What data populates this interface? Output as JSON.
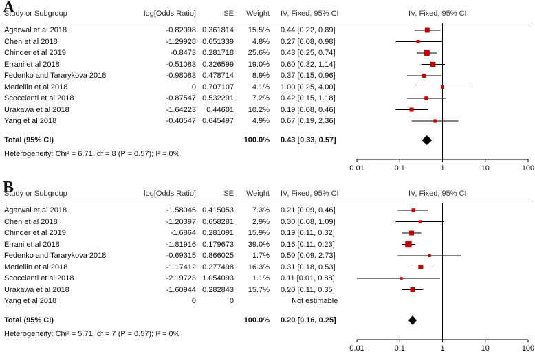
{
  "columns": {
    "study": "Study or Subgroup",
    "lor": "log[Odds Ratio]",
    "se": "SE",
    "weight": "Weight",
    "ci": "IV, Fixed, 95% CI",
    "plot": "IV, Fixed, 95% CI"
  },
  "colors": {
    "marker": "#c00000",
    "line": "#000000",
    "diamond": "#000000"
  },
  "chart_data": [
    {
      "type": "forest",
      "panel_label": "A",
      "x_scale": "log",
      "xlim": [
        0.01,
        100
      ],
      "x_ticks": [
        "0.01",
        "0.1",
        "1",
        "10",
        "100"
      ],
      "null_line": 1,
      "rows": [
        {
          "study": "Agarwal et al 2018",
          "lor": "-0.82098",
          "se": "0.361814",
          "weight": "15.5%",
          "ci": "0.44 [0.22, 0.89]",
          "or": 0.44,
          "lo": 0.22,
          "hi": 0.89,
          "w": 15.5
        },
        {
          "study": "Chen et al 2018",
          "lor": "-1.29928",
          "se": "0.651339",
          "weight": "4.8%",
          "ci": "0.27 [0.08, 0.98]",
          "or": 0.27,
          "lo": 0.08,
          "hi": 0.98,
          "w": 4.8
        },
        {
          "study": "Chinder et al 2019",
          "lor": "-0.8473",
          "se": "0.281718",
          "weight": "25.6%",
          "ci": "0.43 [0.25, 0.74]",
          "or": 0.43,
          "lo": 0.25,
          "hi": 0.74,
          "w": 25.6
        },
        {
          "study": "Errani et al 2018",
          "lor": "-0.51083",
          "se": "0.326599",
          "weight": "19.0%",
          "ci": "0.60 [0.32, 1.14]",
          "or": 0.6,
          "lo": 0.32,
          "hi": 1.14,
          "w": 19.0
        },
        {
          "study": "Fedenko and Tararykova 2018",
          "lor": "-0.98083",
          "se": "0.478714",
          "weight": "8.9%",
          "ci": "0.37 [0.15, 0.96]",
          "or": 0.37,
          "lo": 0.15,
          "hi": 0.96,
          "w": 8.9
        },
        {
          "study": "Medellin et al 2018",
          "lor": "0",
          "se": "0.707107",
          "weight": "4.1%",
          "ci": "1.00 [0.25, 4.00]",
          "or": 1.0,
          "lo": 0.25,
          "hi": 4.0,
          "w": 4.1
        },
        {
          "study": "Scoccianti et al 2018",
          "lor": "-0.87547",
          "se": "0.532291",
          "weight": "7.2%",
          "ci": "0.42 [0.15, 1.18]",
          "or": 0.42,
          "lo": 0.15,
          "hi": 1.18,
          "w": 7.2
        },
        {
          "study": "Urakawa et al 2018",
          "lor": "-1.64223",
          "se": "0.44601",
          "weight": "10.2%",
          "ci": "0.19 [0.08, 0.46]",
          "or": 0.19,
          "lo": 0.08,
          "hi": 0.46,
          "w": 10.2
        },
        {
          "study": "Yang et al  2018",
          "lor": "-0.40547",
          "se": "0.645497",
          "weight": "4.9%",
          "ci": "0.67 [0.19, 2.36]",
          "or": 0.67,
          "lo": 0.19,
          "hi": 2.36,
          "w": 4.9
        }
      ],
      "total": {
        "label": "Total (95% CI)",
        "weight": "100.0%",
        "ci": "0.43 [0.33, 0.57]",
        "or": 0.43,
        "lo": 0.33,
        "hi": 0.57
      },
      "heterogeneity": "Heterogeneity: Chi² = 6.71, df = 8 (P = 0.57); I² = 0%"
    },
    {
      "type": "forest",
      "panel_label": "B",
      "x_scale": "log",
      "xlim": [
        0.01,
        100
      ],
      "x_ticks": [
        "0.01",
        "0.1",
        "1",
        "10",
        "100"
      ],
      "null_line": 1,
      "rows": [
        {
          "study": "Agarwal et al 2018",
          "lor": "-1.58045",
          "se": "0.415053",
          "weight": "7.3%",
          "ci": "0.21 [0.09, 0.46]",
          "or": 0.21,
          "lo": 0.09,
          "hi": 0.46,
          "w": 7.3
        },
        {
          "study": "Chen et al 2018",
          "lor": "-1.20397",
          "se": "0.658281",
          "weight": "2.9%",
          "ci": "0.30 [0.08, 1.09]",
          "or": 0.3,
          "lo": 0.08,
          "hi": 1.09,
          "w": 2.9
        },
        {
          "study": "Chinder et al 2019",
          "lor": "-1.6864",
          "se": "0.281091",
          "weight": "15.9%",
          "ci": "0.19 [0.11, 0.32]",
          "or": 0.19,
          "lo": 0.11,
          "hi": 0.32,
          "w": 15.9
        },
        {
          "study": "Errani et al 2018",
          "lor": "-1.81916",
          "se": "0.179673",
          "weight": "39.0%",
          "ci": "0.16 [0.11, 0.23]",
          "or": 0.16,
          "lo": 0.11,
          "hi": 0.23,
          "w": 39.0
        },
        {
          "study": "Fedenko and Tararykova 2018",
          "lor": "-0.69315",
          "se": "0.866025",
          "weight": "1.7%",
          "ci": "0.50 [0.09, 2.73]",
          "or": 0.5,
          "lo": 0.09,
          "hi": 2.73,
          "w": 1.7
        },
        {
          "study": "Medellin et al 2018",
          "lor": "-1.17412",
          "se": "0.277498",
          "weight": "16.3%",
          "ci": "0.31 [0.18, 0.53]",
          "or": 0.31,
          "lo": 0.18,
          "hi": 0.53,
          "w": 16.3
        },
        {
          "study": "Scoccianti et al 2018",
          "lor": "-2.19723",
          "se": "1.054093",
          "weight": "1.1%",
          "ci": "0.11 [0.01, 0.88]",
          "or": 0.11,
          "lo": 0.01,
          "hi": 0.88,
          "w": 1.1
        },
        {
          "study": "Urakawa et al 2018",
          "lor": "-1.60944",
          "se": "0.282843",
          "weight": "15.7%",
          "ci": "0.20 [0.11, 0.35]",
          "or": 0.2,
          "lo": 0.11,
          "hi": 0.35,
          "w": 15.7
        },
        {
          "study": "Yang et al  2018",
          "lor": "0",
          "se": "0",
          "weight": "",
          "ci": "Not estimable",
          "or": null,
          "lo": null,
          "hi": null,
          "w": 0
        }
      ],
      "total": {
        "label": "Total (95% CI)",
        "weight": "100.0%",
        "ci": "0.20 [0.16, 0.25]",
        "or": 0.2,
        "lo": 0.16,
        "hi": 0.25
      },
      "heterogeneity": "Heterogeneity: Chi² = 5.71, df = 7 (P = 0.57); I² = 0%"
    }
  ]
}
